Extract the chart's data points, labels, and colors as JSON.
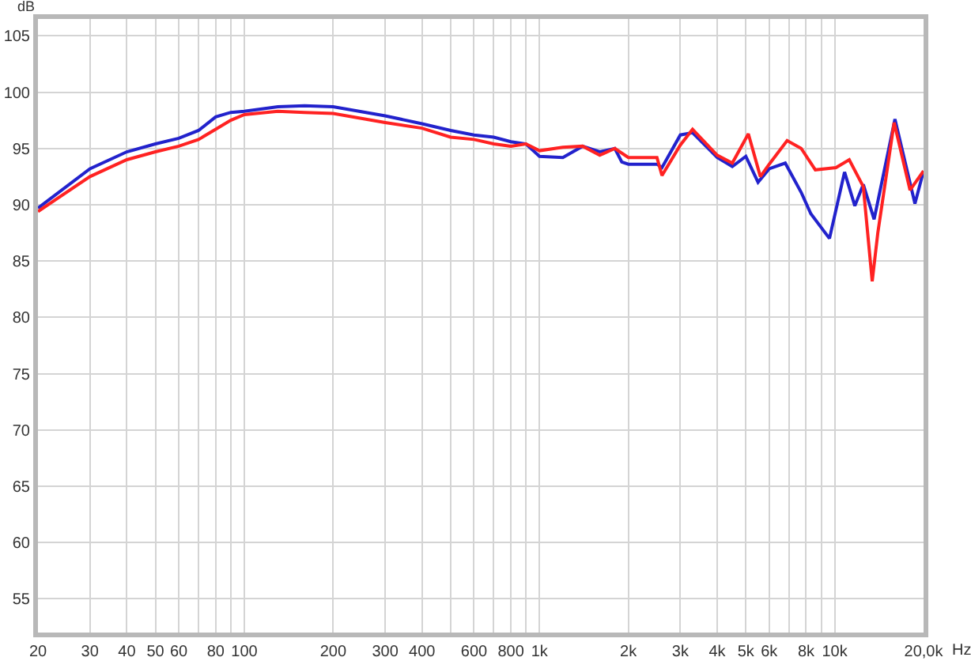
{
  "chart_data": {
    "type": "line",
    "xlabel": "Hz",
    "ylabel": "dB",
    "log": "x",
    "grid": true,
    "marker": "none",
    "line_style": "solid",
    "xlim": [
      20,
      20000
    ],
    "ylim": [
      52,
      106.5
    ],
    "xticks": [
      20,
      30,
      40,
      50,
      60,
      {
        "value": 70,
        "label": null
      },
      80,
      {
        "value": 90,
        "label": null
      },
      100,
      200,
      300,
      400,
      {
        "value": 500,
        "label": null
      },
      600,
      {
        "value": 700,
        "label": null
      },
      800,
      {
        "value": 900,
        "label": null
      },
      {
        "value": 1000,
        "label": "1k"
      },
      {
        "value": 2000,
        "label": "2k"
      },
      {
        "value": 3000,
        "label": "3k"
      },
      {
        "value": 4000,
        "label": "4k"
      },
      {
        "value": 5000,
        "label": "5k"
      },
      {
        "value": 6000,
        "label": "6k"
      },
      {
        "value": 7000,
        "label": null
      },
      {
        "value": 8000,
        "label": "8k"
      },
      {
        "value": 9000,
        "label": null
      },
      {
        "value": 10000,
        "label": "10k"
      },
      {
        "value": 20000,
        "label": "20,0k"
      }
    ],
    "yticks": [
      55,
      60,
      65,
      70,
      75,
      80,
      85,
      90,
      95,
      100,
      105
    ],
    "series": [
      {
        "color": "#2222cc",
        "x": [
          20,
          30,
          40,
          50,
          60,
          70,
          80,
          90,
          100,
          130,
          160,
          200,
          300,
          400,
          500,
          600,
          700,
          800,
          900,
          1000,
          1200,
          1400,
          1600,
          1800,
          1900,
          2000,
          2500,
          2600,
          3000,
          3300,
          4000,
          4500,
          5000,
          5500,
          6000,
          6800,
          7700,
          8300,
          9600,
          10800,
          11700,
          12500,
          13600,
          16000,
          18700,
          20000
        ],
        "values": [
          89.7,
          93.2,
          94.7,
          95.4,
          95.9,
          96.6,
          97.8,
          98.2,
          98.3,
          98.7,
          98.8,
          98.7,
          97.9,
          97.2,
          96.6,
          96.2,
          96.0,
          95.6,
          95.4,
          94.3,
          94.2,
          95.2,
          94.7,
          95.0,
          93.8,
          93.6,
          93.6,
          93.3,
          96.2,
          96.4,
          94.2,
          93.4,
          94.3,
          92.0,
          93.2,
          93.7,
          91.1,
          89.2,
          87.0,
          92.9,
          89.9,
          91.8,
          88.7,
          97.6,
          90.1,
          93.0
        ]
      },
      {
        "color": "#ff2222",
        "x": [
          20,
          30,
          40,
          50,
          60,
          70,
          80,
          90,
          100,
          130,
          160,
          200,
          300,
          400,
          500,
          600,
          700,
          800,
          900,
          1000,
          1200,
          1400,
          1600,
          1800,
          2000,
          2500,
          2600,
          3000,
          3300,
          4000,
          4500,
          5100,
          5600,
          6000,
          6900,
          7700,
          8600,
          10100,
          11200,
          12500,
          13400,
          14000,
          15900,
          18000,
          20000
        ],
        "values": [
          89.4,
          92.5,
          94.0,
          94.7,
          95.2,
          95.8,
          96.7,
          97.5,
          98.0,
          98.3,
          98.2,
          98.1,
          97.3,
          96.8,
          96.0,
          95.8,
          95.4,
          95.2,
          95.4,
          94.8,
          95.1,
          95.2,
          94.4,
          95.0,
          94.2,
          94.2,
          92.6,
          95.3,
          96.7,
          94.4,
          93.7,
          96.3,
          92.5,
          93.6,
          95.7,
          95.0,
          93.1,
          93.3,
          94.0,
          91.6,
          83.2,
          87.5,
          97.3,
          91.3,
          93.0
        ]
      }
    ]
  }
}
